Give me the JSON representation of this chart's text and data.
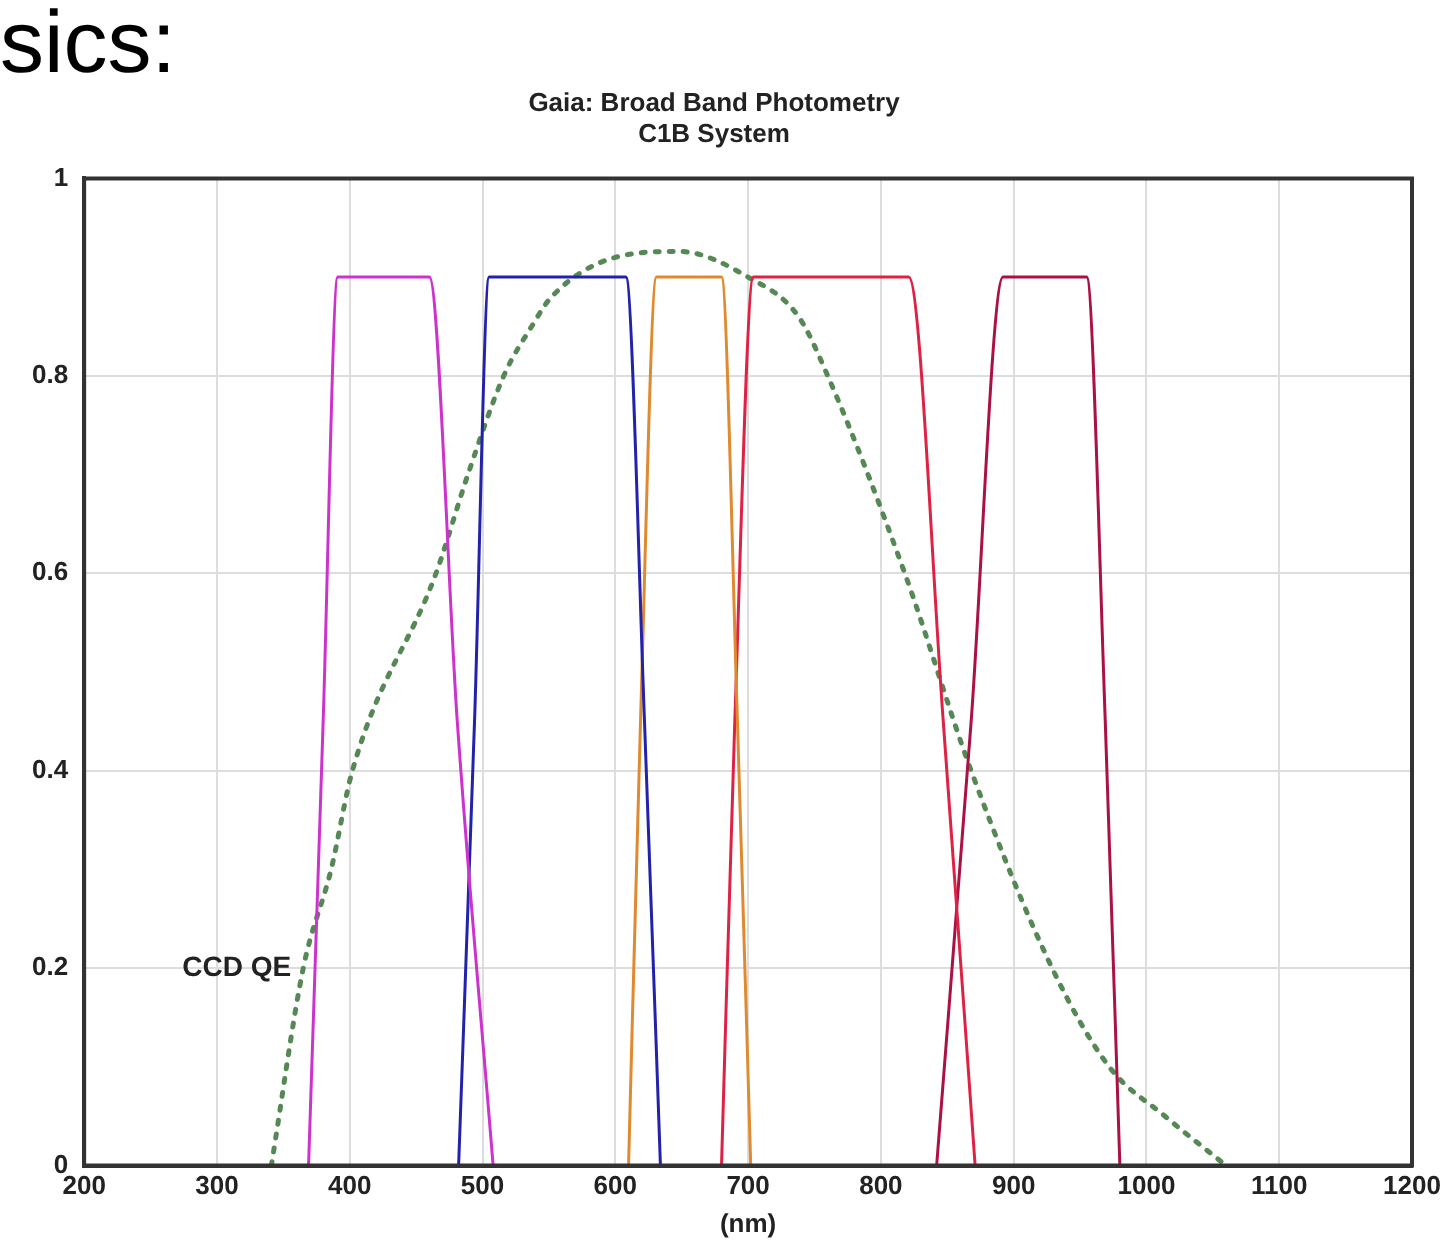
{
  "chart_data": {
    "type": "line",
    "title": "Gaia: Broad Band Photometry",
    "subtitle": "C1B System",
    "xlabel": "(nm)",
    "xlim": [
      200,
      1200
    ],
    "xticks": [
      200,
      300,
      400,
      500,
      600,
      700,
      800,
      900,
      1000,
      1100,
      1200
    ],
    "ylim": [
      0,
      1
    ],
    "yticks": [
      0,
      0.2,
      0.4,
      0.6,
      0.8,
      1
    ],
    "grid": true,
    "marker": "none",
    "annotations": [
      "sics:"
    ],
    "series": [
      {
        "color": "#cc33cc",
        "line_style": "solid",
        "x": [
          369,
          380,
          391,
          460,
          481,
          508
        ],
        "values": [
          0,
          0.45,
          0.9,
          0.9,
          0.45,
          0
        ]
      },
      {
        "color": "#2222aa",
        "line_style": "solid",
        "x": [
          482,
          494,
          505,
          608,
          622,
          634
        ],
        "values": [
          0,
          0.45,
          0.9,
          0.9,
          0.45,
          0
        ]
      },
      {
        "color": "#e08a30",
        "line_style": "solid",
        "x": [
          610,
          619,
          631,
          680,
          692,
          702
        ],
        "values": [
          0,
          0.45,
          0.9,
          0.9,
          0.45,
          0
        ]
      },
      {
        "color": "#dd2244",
        "line_style": "solid",
        "x": [
          680,
          690,
          704,
          821,
          847,
          871
        ],
        "values": [
          0,
          0.45,
          0.9,
          0.9,
          0.45,
          0
        ]
      },
      {
        "color": "#aa1144",
        "line_style": "solid",
        "x": [
          842,
          868,
          892,
          955,
          969,
          980
        ],
        "values": [
          0,
          0.45,
          0.9,
          0.9,
          0.45,
          0
        ]
      },
      {
        "name": "CCD QE",
        "color": "#558855",
        "line_style": "dotted",
        "x": [
          341,
          365,
          386,
          402,
          465,
          489,
          516,
          537,
          552,
          600,
          648,
          700,
          738,
          760,
          818,
          868,
          929,
          972,
          1014,
          1060
        ],
        "values": [
          0,
          0.2,
          0.3,
          0.4,
          0.6,
          0.7,
          0.8,
          0.85,
          0.88,
          0.92,
          0.926,
          0.9,
          0.86,
          0.8,
          0.6,
          0.4,
          0.2,
          0.1,
          0.05,
          0
        ]
      }
    ]
  }
}
